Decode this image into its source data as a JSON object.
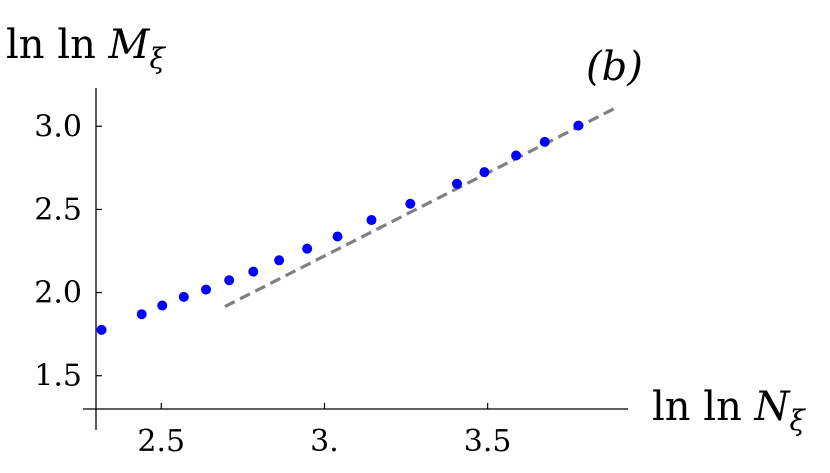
{
  "chart_data": {
    "type": "scatter",
    "title": "",
    "panel_label": "(b)",
    "xlabel": {
      "prefix": "ln ln ",
      "var": "N",
      "sub": "ξ"
    },
    "ylabel": {
      "prefix": "ln ln ",
      "var": "M",
      "sub": "ξ"
    },
    "xlim": [
      2.3,
      3.93
    ],
    "ylim": [
      1.3,
      3.23
    ],
    "xticks": [
      {
        "v": 2.5,
        "label": "2.5"
      },
      {
        "v": 3.0,
        "label": "3."
      },
      {
        "v": 3.5,
        "label": "3.5"
      }
    ],
    "yticks": [
      {
        "v": 1.5,
        "label": "1.5"
      },
      {
        "v": 2.0,
        "label": "2.0"
      },
      {
        "v": 2.5,
        "label": "2.5"
      },
      {
        "v": 3.0,
        "label": "3.0"
      }
    ],
    "grid": false,
    "series": [
      {
        "type": "scatter",
        "color": "#0000ff",
        "x": [
          2.317,
          2.44,
          2.503,
          2.569,
          2.637,
          2.708,
          2.782,
          2.861,
          2.947,
          3.04,
          3.144,
          3.263,
          3.406,
          3.49,
          3.587,
          3.675,
          3.778
        ],
        "y": [
          1.776,
          1.87,
          1.922,
          1.974,
          2.018,
          2.074,
          2.126,
          2.194,
          2.264,
          2.337,
          2.436,
          2.534,
          2.654,
          2.724,
          2.824,
          2.906,
          3.004
        ]
      },
      {
        "type": "line",
        "style": "dashed",
        "color": "#808080",
        "x": [
          2.695,
          3.888
        ],
        "y": [
          1.916,
          3.106
        ]
      }
    ]
  }
}
